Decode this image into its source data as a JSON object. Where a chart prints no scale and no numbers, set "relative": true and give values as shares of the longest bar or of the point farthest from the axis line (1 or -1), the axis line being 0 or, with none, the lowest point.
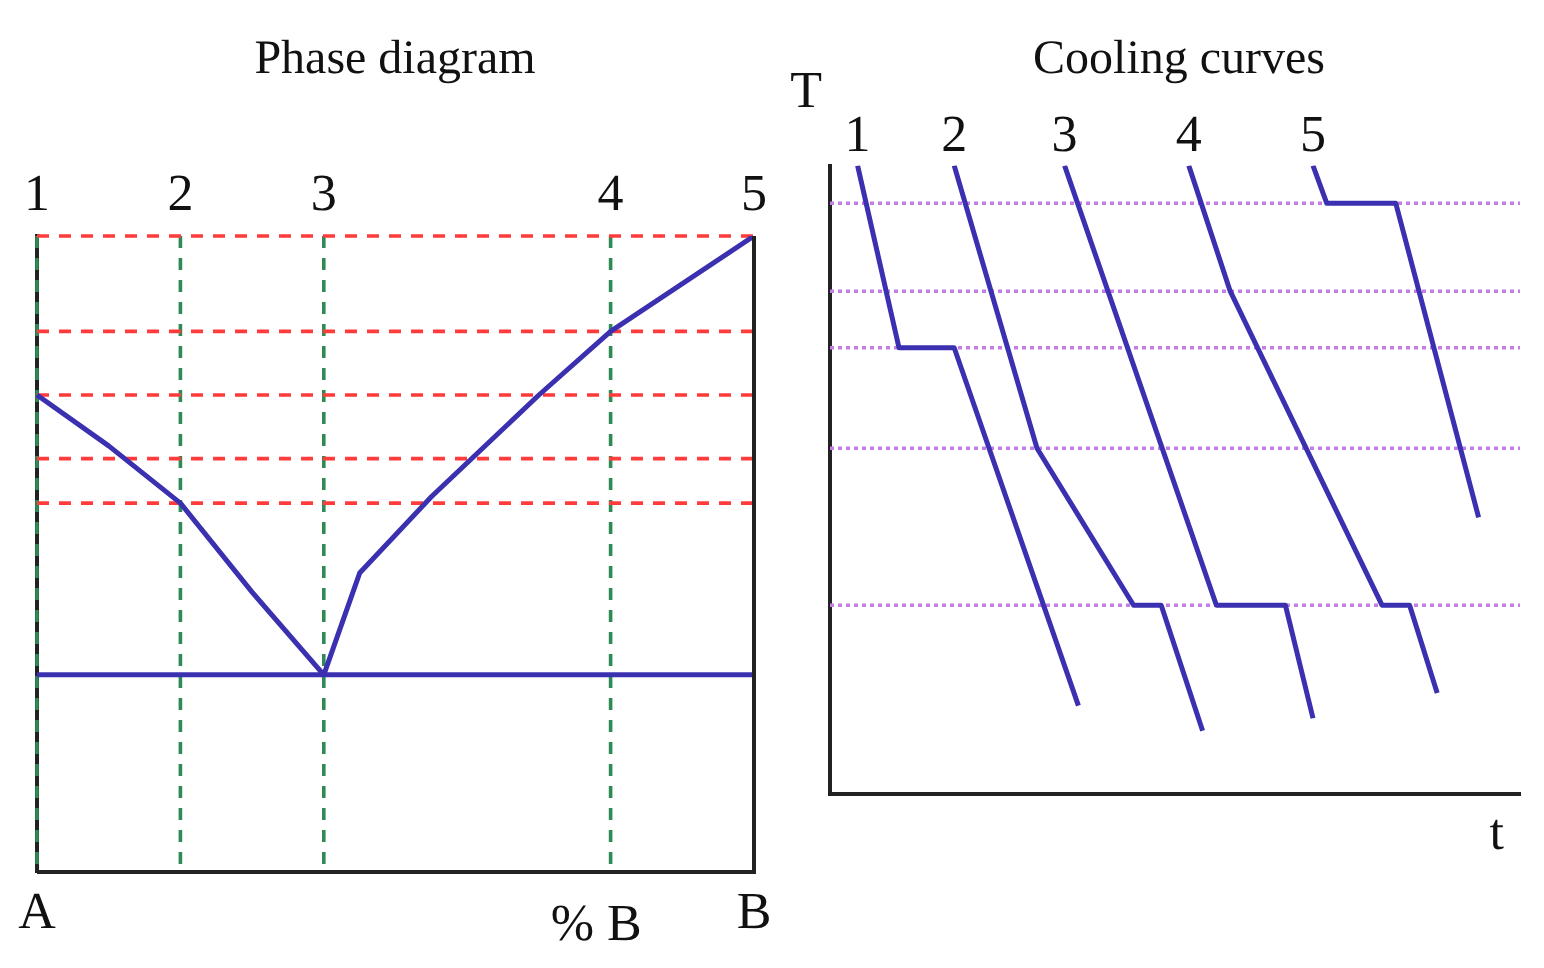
{
  "chart_data": [
    {
      "type": "line",
      "title": "Phase diagram",
      "xlabel": "% B",
      "relative": true,
      "categories": [
        "1",
        null,
        null,
        null,
        "2",
        null,
        null,
        null,
        "3",
        null,
        null,
        null,
        null,
        null,
        null,
        null,
        "4",
        null,
        null,
        null,
        "5"
      ],
      "annotations": [
        "A",
        "B"
      ],
      "grid": "x",
      "series": [
        {
          "color": "#3a30b0",
          "values": [
            0.75,
            null,
            0.67,
            null,
            0.58,
            null,
            0.44,
            null,
            0.31,
            null,
            null,
            null,
            null,
            null,
            null,
            null,
            null,
            null,
            null,
            null,
            null
          ]
        },
        {
          "color": "#3a30b0",
          "values": [
            null,
            null,
            null,
            null,
            null,
            null,
            null,
            null,
            0.31,
            0.47,
            null,
            0.59,
            null,
            null,
            0.75,
            null,
            0.85,
            null,
            null,
            null,
            1.0
          ]
        },
        {
          "color": "#3a30b0",
          "values": [
            0.31,
            null,
            null,
            null,
            null,
            null,
            null,
            null,
            null,
            null,
            null,
            null,
            null,
            null,
            null,
            null,
            null,
            null,
            null,
            null,
            0.31
          ]
        }
      ],
      "ref_lines": [
        {
          "axis": "y",
          "value": 1.0,
          "color": "#ff3b3b",
          "line_style": "dashed"
        },
        {
          "axis": "y",
          "value": 0.85,
          "color": "#ff3b3b",
          "line_style": "dashed"
        },
        {
          "axis": "y",
          "value": 0.75,
          "color": "#ff3b3b",
          "line_style": "dashed"
        },
        {
          "axis": "y",
          "value": 0.65,
          "color": "#ff3b3b",
          "line_style": "dashed"
        },
        {
          "axis": "y",
          "value": 0.58,
          "color": "#ff3b3b",
          "line_style": "dashed"
        }
      ]
    },
    {
      "type": "line",
      "title": "Cooling curves",
      "xlabel": "t",
      "ylabel": "T",
      "relative": true,
      "categories": [
        null,
        null,
        null,
        null,
        null,
        null,
        null,
        null,
        null,
        null,
        null,
        null,
        null,
        null,
        null,
        null,
        null,
        null,
        null,
        null,
        null,
        null,
        null,
        null,
        null,
        null,
        null,
        null,
        null,
        null,
        null,
        null,
        null,
        null,
        null,
        null,
        null,
        null,
        null,
        null,
        null,
        null,
        null,
        null,
        null,
        null,
        null,
        null,
        null,
        null,
        null
      ],
      "series": [
        {
          "name": "1",
          "color": "#3a30b0",
          "values": [
            null,
            null,
            1.0,
            null,
            null,
            0.71,
            null,
            null,
            null,
            0.71,
            null,
            null,
            null,
            null,
            null,
            null,
            null,
            null,
            0.14,
            null,
            null,
            null,
            null,
            null,
            null,
            null,
            null,
            null,
            null,
            null,
            null,
            null,
            null,
            null,
            null,
            null,
            null,
            null,
            null,
            null,
            null,
            null,
            null,
            null,
            null,
            null,
            null,
            null,
            null,
            null,
            null
          ]
        },
        {
          "name": "2",
          "color": "#3a30b0",
          "values": [
            null,
            null,
            null,
            null,
            null,
            null,
            null,
            null,
            null,
            1.0,
            null,
            null,
            null,
            null,
            null,
            0.55,
            null,
            null,
            null,
            null,
            null,
            null,
            0.3,
            null,
            0.3,
            null,
            null,
            0.1,
            null,
            null,
            null,
            null,
            null,
            null,
            null,
            null,
            null,
            null,
            null,
            null,
            null,
            null,
            null,
            null,
            null,
            null,
            null,
            null,
            null,
            null,
            null
          ]
        },
        {
          "name": "3",
          "color": "#3a30b0",
          "values": [
            null,
            null,
            null,
            null,
            null,
            null,
            null,
            null,
            null,
            null,
            null,
            null,
            null,
            null,
            null,
            null,
            null,
            1.0,
            null,
            null,
            null,
            null,
            null,
            null,
            null,
            null,
            null,
            null,
            0.3,
            null,
            null,
            null,
            null,
            0.3,
            null,
            0.12,
            null,
            null,
            null,
            null,
            null,
            null,
            null,
            null,
            null,
            null,
            null,
            null,
            null,
            null,
            null
          ]
        },
        {
          "name": "4",
          "color": "#3a30b0",
          "values": [
            null,
            null,
            null,
            null,
            null,
            null,
            null,
            null,
            null,
            null,
            null,
            null,
            null,
            null,
            null,
            null,
            null,
            null,
            null,
            null,
            null,
            null,
            null,
            null,
            null,
            null,
            1.0,
            null,
            null,
            0.8,
            null,
            null,
            null,
            null,
            null,
            null,
            null,
            null,
            null,
            null,
            0.3,
            null,
            0.3,
            null,
            0.16,
            null,
            null,
            null,
            null,
            null,
            null
          ]
        },
        {
          "name": "5",
          "color": "#3a30b0",
          "values": [
            null,
            null,
            null,
            null,
            null,
            null,
            null,
            null,
            null,
            null,
            null,
            null,
            null,
            null,
            null,
            null,
            null,
            null,
            null,
            null,
            null,
            null,
            null,
            null,
            null,
            null,
            null,
            null,
            null,
            null,
            null,
            null,
            null,
            null,
            null,
            1.0,
            0.94,
            null,
            null,
            null,
            null,
            0.94,
            null,
            null,
            null,
            null,
            null,
            0.44,
            null,
            null,
            null
          ]
        }
      ],
      "ref_lines": [
        {
          "axis": "y",
          "value": 0.94,
          "color": "#c27ee6",
          "line_style": "dotted"
        },
        {
          "axis": "y",
          "value": 0.8,
          "color": "#c27ee6",
          "line_style": "dotted"
        },
        {
          "axis": "y",
          "value": 0.71,
          "color": "#c27ee6",
          "line_style": "dotted"
        },
        {
          "axis": "y",
          "value": 0.55,
          "color": "#c27ee6",
          "line_style": "dotted"
        },
        {
          "axis": "y",
          "value": 0.3,
          "color": "#c27ee6",
          "line_style": "dotted"
        }
      ]
    }
  ]
}
